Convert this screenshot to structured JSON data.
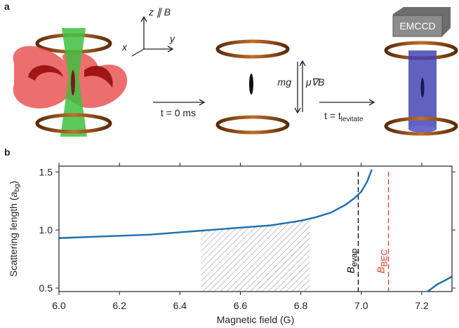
{
  "panel_a": {
    "label": "a",
    "axis_z": "z ∥ B",
    "axis_x": "x",
    "axis_y": "y",
    "step1": "t = 0 ms",
    "force_down": "mg",
    "force_up": "μ∇B",
    "step2": "t = t",
    "step2_sub": "levitate",
    "camera": "EMCCD"
  },
  "chart_data": {
    "type": "line",
    "panel_label": "b",
    "xlabel": "Magnetic field (G)",
    "ylabel_parts": [
      "Scattering length (",
      "a",
      "bg",
      ")"
    ],
    "xlim": [
      6.0,
      7.3
    ],
    "ylim": [
      0.47,
      1.55
    ],
    "xticks": [
      {
        "value": 6,
        "label": "6.0"
      },
      6.2,
      6.4,
      6.6,
      6.8,
      {
        "value": 7,
        "label": "7.0"
      },
      7.2
    ],
    "yticks": [
      0.5,
      {
        "value": 1,
        "label": "1.0"
      },
      1.5
    ],
    "series": [
      {
        "color": "#1a6fae",
        "x": [
          6.0,
          6.1,
          6.2,
          6.3,
          6.4,
          6.5,
          6.6,
          6.7,
          6.8,
          6.85,
          6.9,
          6.95,
          6.98,
          7.0,
          7.02,
          7.035,
          7.1,
          7.22,
          7.25,
          7.28,
          7.3
        ],
        "values": [
          0.93,
          0.94,
          0.95,
          0.96,
          0.98,
          1.0,
          1.02,
          1.04,
          1.08,
          1.11,
          1.15,
          1.22,
          1.28,
          1.33,
          1.42,
          1.52,
          null,
          0.47,
          0.53,
          0.57,
          0.6
        ]
      }
    ],
    "shaded_region": [
      6.47,
      6.83
    ],
    "vlines": [
      {
        "x": 6.99,
        "color": "#000000",
        "label": "B",
        "sub": "evap"
      },
      {
        "x": 7.09,
        "color": "#e03a2e",
        "label": "B",
        "sub": "BEC"
      }
    ]
  }
}
